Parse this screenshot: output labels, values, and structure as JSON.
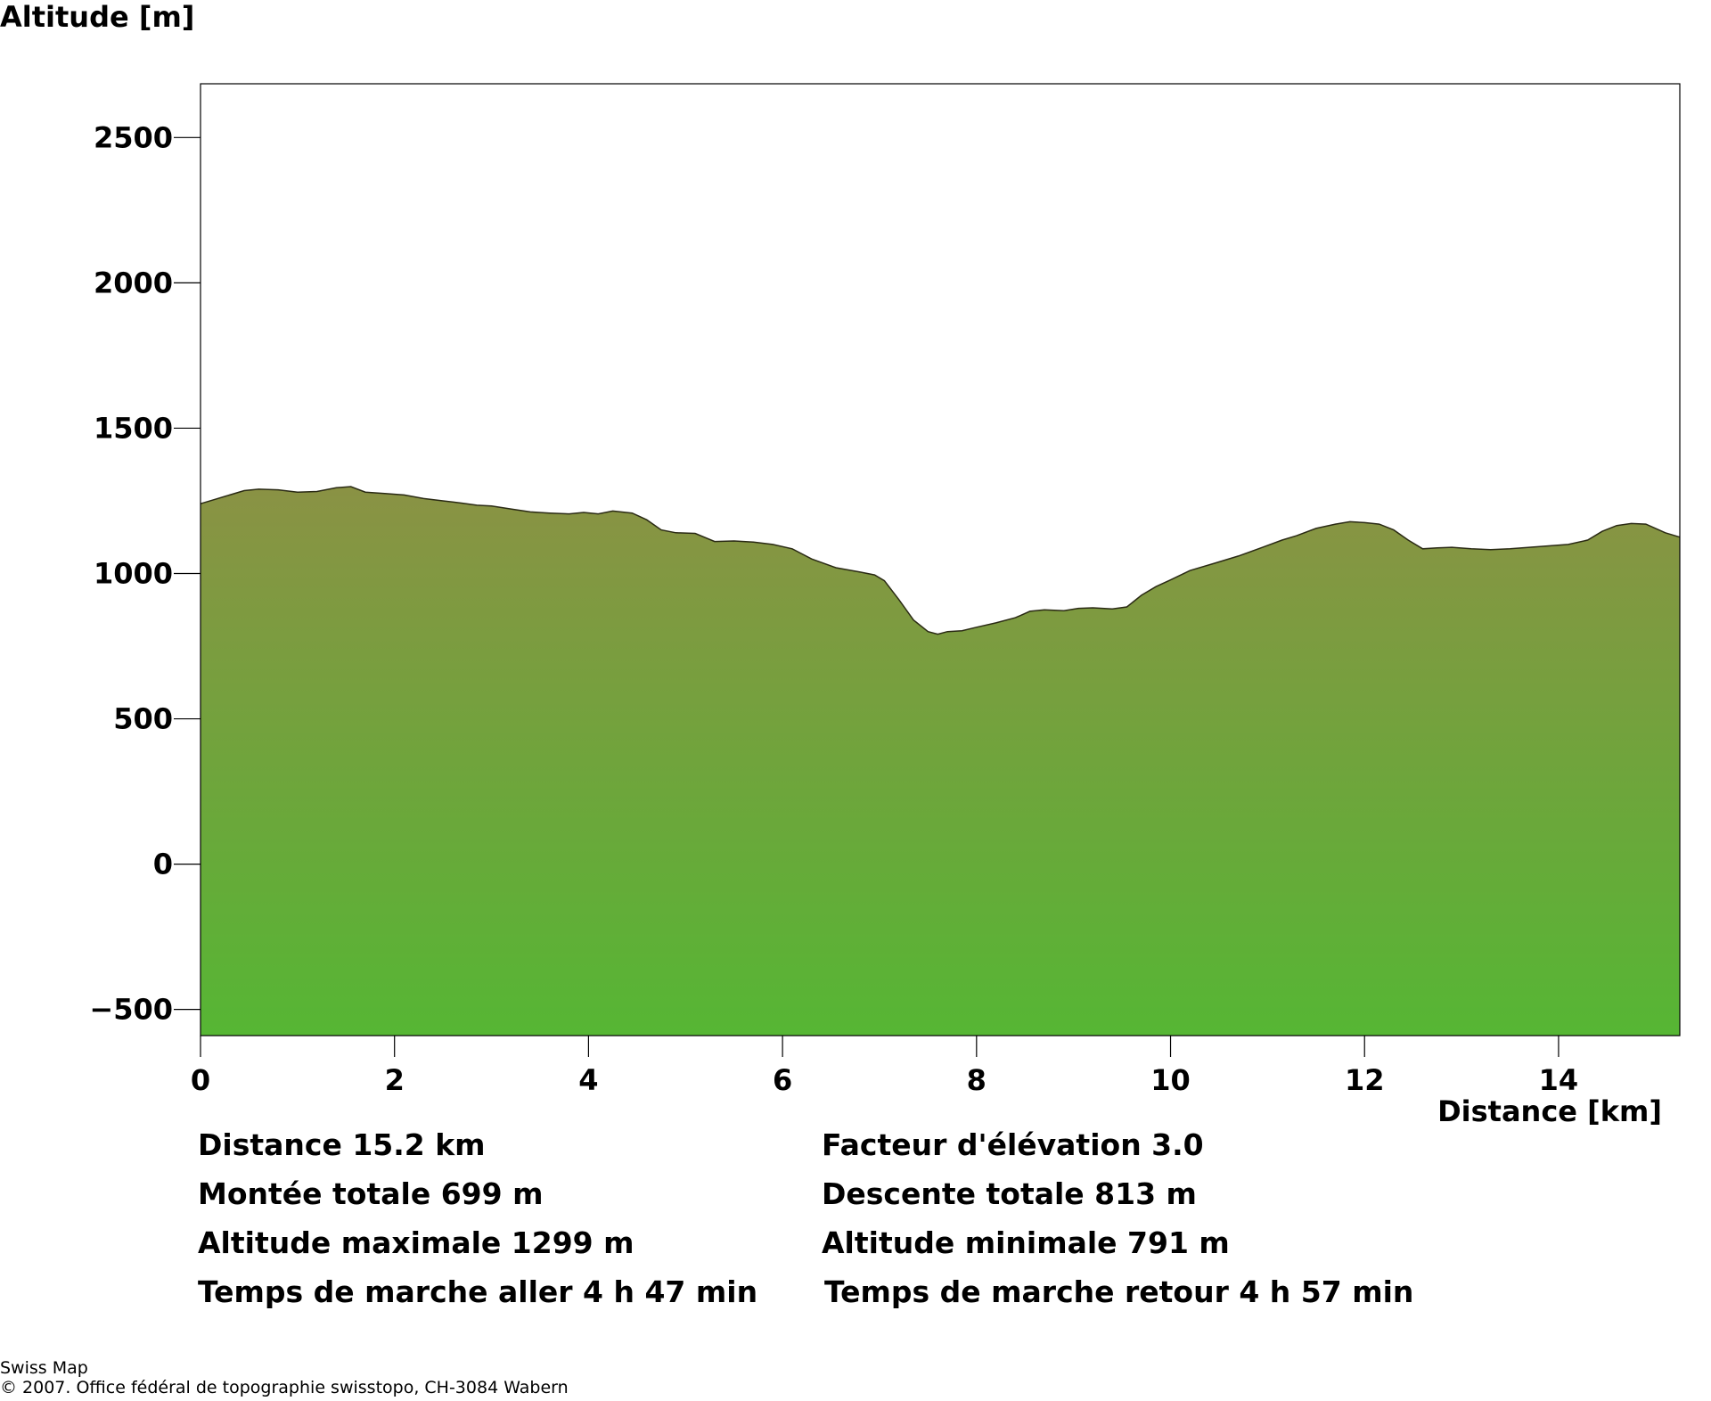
{
  "chart_data": {
    "type": "area",
    "ylabel": "Altitude [m]",
    "xlabel": "Distance [km]",
    "xlim": [
      0,
      15.25
    ],
    "ylim": [
      -590,
      2685
    ],
    "x_ticks": [
      0,
      2,
      4,
      6,
      8,
      10,
      12,
      14
    ],
    "y_ticks": [
      -500,
      0,
      500,
      1000,
      1500,
      2000,
      2500
    ],
    "grid": false,
    "fill_colors": {
      "top": "#8a9244",
      "bottom": "#56b634"
    },
    "series": [
      {
        "x": [
          0,
          0.15,
          0.3,
          0.45,
          0.6,
          0.8,
          1.0,
          1.2,
          1.4,
          1.55,
          1.7,
          1.9,
          2.1,
          2.3,
          2.5,
          2.7,
          2.85,
          3.0,
          3.2,
          3.4,
          3.6,
          3.8,
          3.95,
          4.1,
          4.25,
          4.45,
          4.6,
          4.75,
          4.9,
          5.1,
          5.3,
          5.5,
          5.7,
          5.9,
          6.1,
          6.3,
          6.55,
          6.8,
          6.95,
          7.05,
          7.2,
          7.35,
          7.5,
          7.6,
          7.7,
          7.85,
          8.0,
          8.2,
          8.4,
          8.55,
          8.7,
          8.9,
          9.05,
          9.2,
          9.4,
          9.55,
          9.7,
          9.85,
          10.0,
          10.2,
          10.45,
          10.7,
          10.95,
          11.15,
          11.3,
          11.5,
          11.7,
          11.85,
          12.0,
          12.15,
          12.3,
          12.45,
          12.6,
          12.75,
          12.9,
          13.1,
          13.3,
          13.5,
          13.7,
          13.9,
          14.1,
          14.3,
          14.45,
          14.6,
          14.75,
          14.9,
          15.0,
          15.1,
          15.25
        ],
        "y": [
          1240,
          1255,
          1270,
          1285,
          1290,
          1288,
          1280,
          1282,
          1295,
          1299,
          1280,
          1275,
          1270,
          1258,
          1250,
          1242,
          1235,
          1232,
          1222,
          1212,
          1208,
          1205,
          1210,
          1205,
          1215,
          1208,
          1185,
          1150,
          1140,
          1138,
          1110,
          1112,
          1108,
          1100,
          1085,
          1050,
          1020,
          1005,
          995,
          975,
          910,
          840,
          800,
          791,
          800,
          803,
          815,
          830,
          848,
          870,
          875,
          872,
          880,
          882,
          878,
          885,
          925,
          955,
          978,
          1010,
          1035,
          1060,
          1090,
          1115,
          1130,
          1155,
          1170,
          1178,
          1175,
          1170,
          1150,
          1115,
          1085,
          1088,
          1090,
          1085,
          1082,
          1085,
          1090,
          1095,
          1100,
          1115,
          1145,
          1165,
          1172,
          1170,
          1155,
          1140,
          1125
        ]
      }
    ]
  },
  "stats": {
    "left": [
      "Distance 15.2 km",
      "Montée totale  699 m",
      "Altitude maximale  1299 m",
      "Temps de marche aller  4 h 47 min"
    ],
    "right": [
      "Facteur d'élévation 3.0",
      "Descente totale  813 m",
      "Altitude minimale  791 m",
      "Temps de marche retour  4 h 57 min"
    ]
  },
  "footer": {
    "line1": "Swiss Map",
    "line2": "© 2007. Office fédéral de topographie swisstopo, CH-3084 Wabern"
  }
}
